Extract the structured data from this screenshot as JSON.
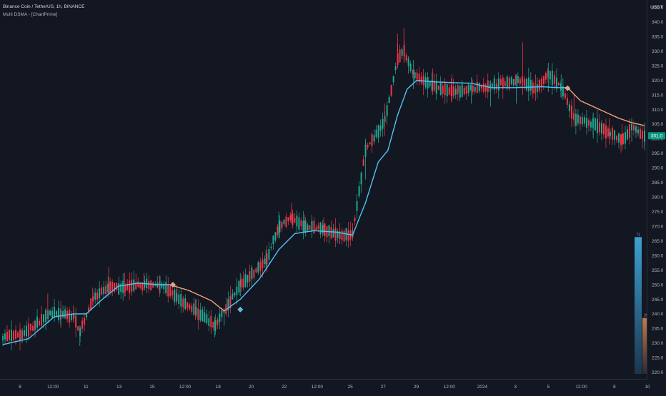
{
  "header": {
    "symbol": "Binance Coin / TetherUS, 1h, BINANCE",
    "indicator": "Multi DSMA - [ChartPrime]"
  },
  "colors": {
    "background": "#131722",
    "up_candle": "#22ab94",
    "down_candle": "#f23645",
    "dsma_bull": "#4fc3f7",
    "dsma_bear": "#f7a072",
    "axis_text": "#b2b5be",
    "grid": "#1e222d"
  },
  "chart_data": {
    "type": "candlestick",
    "title": "Binance Coin / TetherUS, 1h, BINANCE",
    "y_unit": "USDT",
    "ylim": [
      217.5,
      347.5
    ],
    "yticks": [
      220,
      225,
      230,
      235,
      240,
      245,
      250,
      255,
      260,
      265,
      270,
      275,
      280,
      285,
      290,
      295,
      300,
      305,
      310,
      315,
      320,
      325,
      330,
      335,
      340,
      345
    ],
    "xticks": [
      "8",
      "12:00",
      "11",
      "13",
      "15",
      "12:00",
      "18",
      "20",
      "22",
      "12:00",
      "25",
      "27",
      "29",
      "12:00",
      "2024",
      "3",
      "5",
      "12:00",
      "8",
      "10"
    ],
    "last_price": "301.0",
    "grid": false,
    "price_path": [
      [
        0,
        231,
        233,
        229,
        232
      ],
      [
        0.03,
        232,
        235,
        230,
        233
      ],
      [
        0.05,
        236,
        238,
        234,
        236
      ],
      [
        0.07,
        244,
        247,
        239,
        240
      ],
      [
        0.09,
        239,
        242,
        236,
        240
      ],
      [
        0.11,
        240,
        243,
        237,
        239
      ],
      [
        0.12,
        233,
        236,
        229,
        234
      ],
      [
        0.14,
        246,
        249,
        243,
        245
      ],
      [
        0.165,
        251,
        256,
        247,
        249
      ],
      [
        0.19,
        250,
        254,
        246,
        249
      ],
      [
        0.22,
        252,
        254,
        248,
        250
      ],
      [
        0.245,
        250,
        253,
        247,
        250
      ],
      [
        0.27,
        247,
        250,
        243,
        246
      ],
      [
        0.3,
        242,
        245,
        238,
        241
      ],
      [
        0.33,
        236,
        239,
        232,
        236
      ],
      [
        0.345,
        237,
        242,
        236,
        241
      ],
      [
        0.37,
        249,
        254,
        246,
        250
      ],
      [
        0.41,
        258,
        262,
        255,
        258
      ],
      [
        0.43,
        270,
        275,
        266,
        270
      ],
      [
        0.45,
        275,
        278,
        271,
        273
      ],
      [
        0.47,
        271,
        274,
        268,
        270
      ],
      [
        0.5,
        270,
        273,
        267,
        269
      ],
      [
        0.525,
        268,
        271,
        264,
        267
      ],
      [
        0.545,
        268,
        271,
        265,
        267
      ],
      [
        0.565,
        292,
        300,
        286,
        296
      ],
      [
        0.595,
        307,
        312,
        301,
        306
      ],
      [
        0.615,
        330,
        336,
        324,
        327
      ],
      [
        0.625,
        333,
        338,
        326,
        330
      ],
      [
        0.64,
        320,
        327,
        317,
        322
      ],
      [
        0.67,
        319,
        324,
        315,
        318
      ],
      [
        0.7,
        318,
        322,
        313,
        316
      ],
      [
        0.73,
        316,
        321,
        312,
        317
      ],
      [
        0.76,
        316,
        320,
        311,
        318
      ],
      [
        0.8,
        318,
        322,
        312,
        320
      ],
      [
        0.81,
        322,
        333,
        315,
        320
      ],
      [
        0.83,
        318,
        322,
        313,
        317
      ],
      [
        0.85,
        320,
        326,
        316,
        322
      ],
      [
        0.87,
        317,
        322,
        314,
        318
      ],
      [
        0.89,
        311,
        315,
        304,
        307
      ],
      [
        0.92,
        305,
        309,
        300,
        305
      ],
      [
        0.945,
        304,
        307,
        298,
        302
      ],
      [
        0.965,
        302,
        305,
        296,
        299
      ],
      [
        0.98,
        303,
        307,
        299,
        304
      ],
      [
        1.0,
        300,
        304,
        297,
        301
      ]
    ],
    "dsma_path": [
      [
        0,
        229.5
      ],
      [
        0.04,
        231.5
      ],
      [
        0.08,
        239
      ],
      [
        0.11,
        240
      ],
      [
        0.13,
        240
      ],
      [
        0.155,
        245
      ],
      [
        0.18,
        249.5
      ],
      [
        0.21,
        250.5
      ],
      [
        0.245,
        250
      ],
      [
        0.26,
        250
      ],
      [
        0.29,
        248
      ],
      [
        0.325,
        244.5
      ],
      [
        0.345,
        241
      ],
      [
        0.37,
        245
      ],
      [
        0.4,
        252
      ],
      [
        0.43,
        262
      ],
      [
        0.455,
        267.5
      ],
      [
        0.485,
        268.5
      ],
      [
        0.52,
        268
      ],
      [
        0.545,
        267
      ],
      [
        0.565,
        278
      ],
      [
        0.585,
        292
      ],
      [
        0.6,
        296
      ],
      [
        0.615,
        308
      ],
      [
        0.63,
        317
      ],
      [
        0.645,
        320
      ],
      [
        0.67,
        319.5
      ],
      [
        0.7,
        319.2
      ],
      [
        0.73,
        319
      ],
      [
        0.76,
        317.5
      ],
      [
        0.8,
        317.5
      ],
      [
        0.84,
        317.8
      ],
      [
        0.865,
        317.5
      ],
      [
        0.88,
        317.5
      ],
      [
        0.9,
        313
      ],
      [
        0.93,
        310
      ],
      [
        0.96,
        307
      ],
      [
        0.98,
        305.5
      ],
      [
        1.0,
        304.5
      ]
    ],
    "bear_segments": [
      [
        0.265,
        0.345
      ],
      [
        0.88,
        1.0
      ]
    ],
    "signal_markers": [
      {
        "x": 0.265,
        "y": 250,
        "kind": "bearish"
      },
      {
        "x": 0.37,
        "y": 241.5,
        "kind": "bullish"
      },
      {
        "x": 0.88,
        "y": 317.3,
        "kind": "bearish"
      }
    ],
    "strength_bars": [
      {
        "series": "bullish",
        "value": 71,
        "label": "71"
      },
      {
        "series": "bearish",
        "value": 29,
        "label": "29"
      }
    ]
  }
}
